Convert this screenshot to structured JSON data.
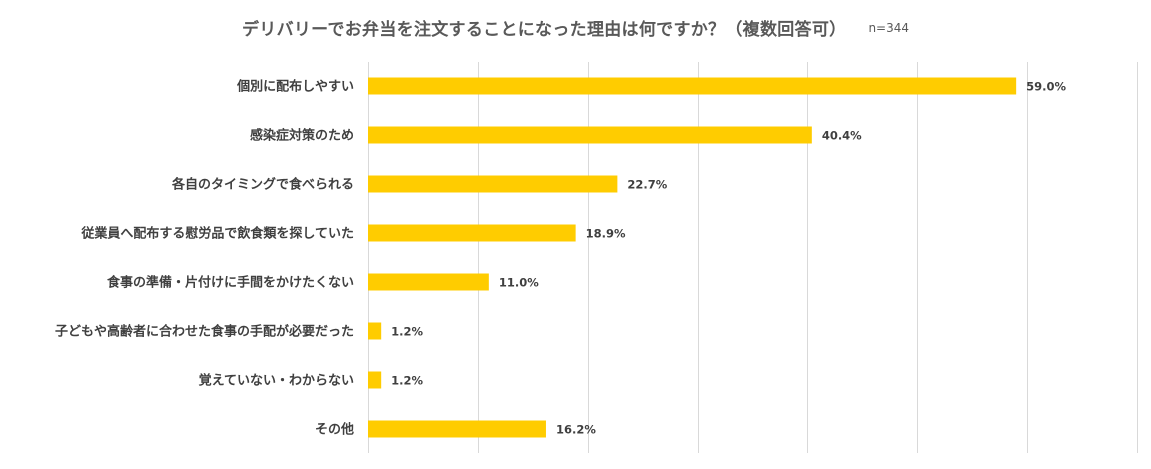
{
  "chart_data": {
    "type": "bar",
    "orientation": "horizontal",
    "title": "デリバリーでお弁当を注文することになった理由は何ですか？（複数回答可）",
    "subtitle": "n=344",
    "categories": [
      "個別に配布しやすい",
      "感染症対策のため",
      "各自のタイミングで食べられる",
      "従業員へ配布する慰労品で飲食類を探していた",
      "食事の準備・片付けに手間をかけたくない",
      "子どもや高齢者に合わせた食事の手配が必要だった",
      "覚えていない・わからない",
      "その他"
    ],
    "values": [
      59.0,
      40.4,
      22.7,
      18.9,
      11.0,
      1.2,
      1.2,
      16.2
    ],
    "data_labels": [
      "59.0%",
      "40.4%",
      "22.7%",
      "18.9%",
      "11.0%",
      "1.2%",
      "1.2%",
      "16.2%"
    ],
    "xlim": [
      0,
      70
    ],
    "grid": true,
    "bar_color": "#FFCC00",
    "grid_color": "#D9D9D9",
    "text_color": "#404040"
  }
}
